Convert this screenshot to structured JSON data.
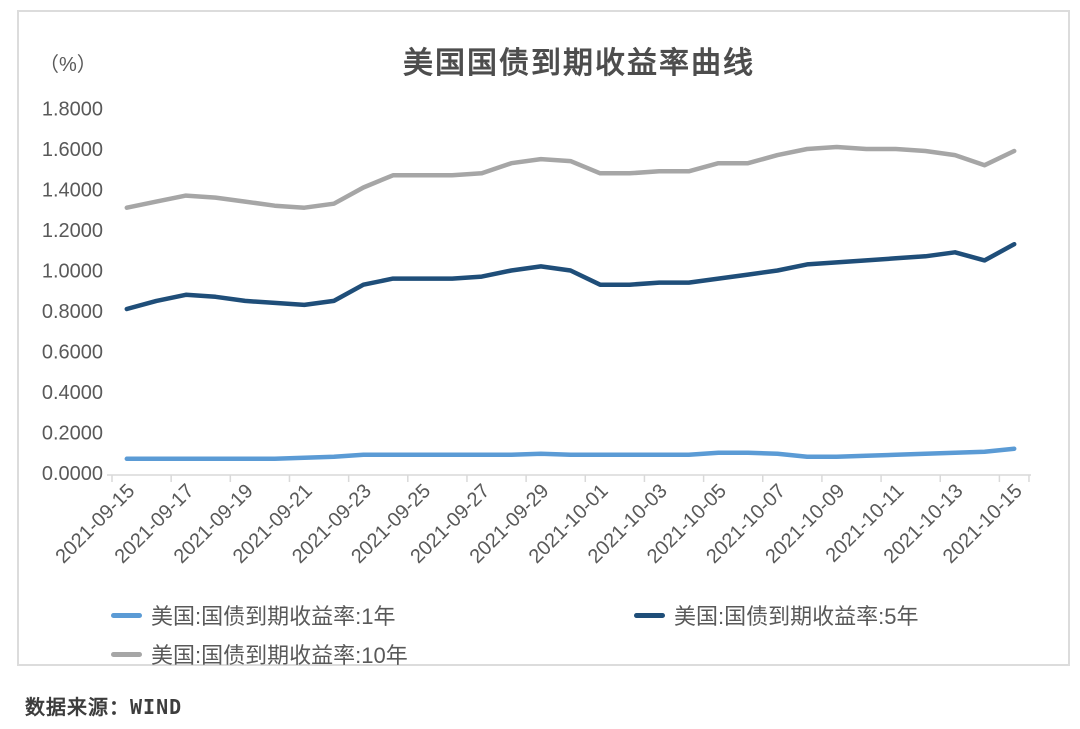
{
  "page": {
    "source_label": "数据来源：WIND"
  },
  "chart_data": {
    "type": "line",
    "title": "美国国债到期收益率曲线",
    "y_unit_label": "（%）",
    "xlabel": "",
    "ylabel": "",
    "ylim": [
      0.0,
      1.8
    ],
    "grid": false,
    "legend_position": "bottom",
    "y_tick_labels": [
      "1.8000",
      "1.6000",
      "1.4000",
      "1.2000",
      "1.0000",
      "0.8000",
      "0.6000",
      "0.4000",
      "0.2000",
      "0.0000"
    ],
    "x_tick_labels": [
      "2021-09-15",
      "2021-09-17",
      "2021-09-19",
      "2021-09-21",
      "2021-09-23",
      "2021-09-25",
      "2021-09-27",
      "2021-09-29",
      "2021-10-01",
      "2021-10-03",
      "2021-10-05",
      "2021-10-07",
      "2021-10-09",
      "2021-10-11",
      "2021-10-13",
      "2021-10-15"
    ],
    "x": [
      "2021-09-15",
      "2021-09-16",
      "2021-09-17",
      "2021-09-18",
      "2021-09-19",
      "2021-09-20",
      "2021-09-21",
      "2021-09-22",
      "2021-09-23",
      "2021-09-24",
      "2021-09-25",
      "2021-09-26",
      "2021-09-27",
      "2021-09-28",
      "2021-09-29",
      "2021-09-30",
      "2021-10-01",
      "2021-10-02",
      "2021-10-03",
      "2021-10-04",
      "2021-10-05",
      "2021-10-06",
      "2021-10-07",
      "2021-10-08",
      "2021-10-09",
      "2021-10-10",
      "2021-10-11",
      "2021-10-12",
      "2021-10-13",
      "2021-10-14",
      "2021-10-15"
    ],
    "series": [
      {
        "key": "1y",
        "name": "美国:国债到期收益率:1年",
        "color": "#5B9BD5",
        "values": [
          0.07,
          0.07,
          0.07,
          0.07,
          0.07,
          0.07,
          0.075,
          0.08,
          0.09,
          0.09,
          0.09,
          0.09,
          0.09,
          0.09,
          0.095,
          0.09,
          0.09,
          0.09,
          0.09,
          0.09,
          0.1,
          0.1,
          0.095,
          0.08,
          0.08,
          0.085,
          0.09,
          0.095,
          0.1,
          0.105,
          0.12
        ]
      },
      {
        "key": "5y",
        "name": "美国:国债到期收益率:5年",
        "color": "#1F4E79",
        "values": [
          0.81,
          0.85,
          0.88,
          0.87,
          0.85,
          0.84,
          0.83,
          0.85,
          0.93,
          0.96,
          0.96,
          0.96,
          0.97,
          1.0,
          1.02,
          1.0,
          0.93,
          0.93,
          0.94,
          0.94,
          0.96,
          0.98,
          1.0,
          1.03,
          1.04,
          1.05,
          1.06,
          1.07,
          1.09,
          1.05,
          1.13
        ]
      },
      {
        "key": "10y",
        "name": "美国:国债到期收益率:10年",
        "color": "#A6A6A6",
        "values": [
          1.31,
          1.34,
          1.37,
          1.36,
          1.34,
          1.32,
          1.31,
          1.33,
          1.41,
          1.47,
          1.47,
          1.47,
          1.48,
          1.53,
          1.55,
          1.54,
          1.48,
          1.48,
          1.49,
          1.49,
          1.53,
          1.53,
          1.57,
          1.6,
          1.61,
          1.6,
          1.6,
          1.59,
          1.57,
          1.52,
          1.59
        ]
      }
    ]
  }
}
